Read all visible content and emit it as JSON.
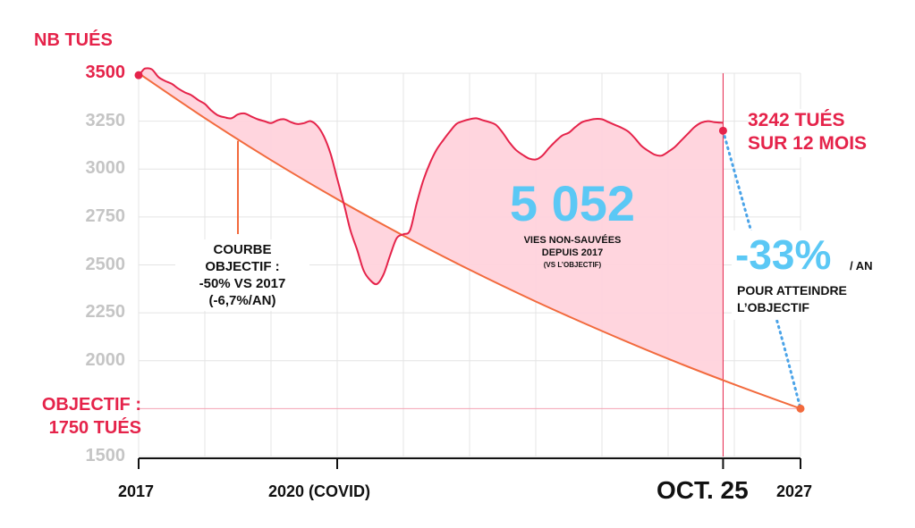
{
  "colors": {
    "red": "#e5234a",
    "fill_pink": "#ffd3dc",
    "objective_orange": "#f26a3d",
    "projection_blue": "#4aa3e8",
    "big_number_blue": "#5bc8f5",
    "tick_grey": "#c5c5c5",
    "grid": "#e4e4e4"
  },
  "labels": {
    "y_axis_title": "NB TUÉS",
    "objective_line1": "OBJECTIF :",
    "objective_line2": "1750 TUÉS",
    "current_line1": "3242 TUÉS",
    "current_line2": "SUR 12 MOIS",
    "curve_note_line1": "COURBE",
    "curve_note_line2": "OBJECTIF :",
    "curve_note_line3": "-50% VS 2017",
    "curve_note_line4": "(-6,7%/AN)",
    "big_number": "5 052",
    "big_number_caption1": "VIES NON-SAUVÉES",
    "big_number_caption2": "DEPUIS 2017",
    "big_number_caption3": "(VS L’OBJECTIF)",
    "rate_value": "-33%",
    "rate_unit": "/ AN",
    "rate_caption1": "POUR ATTEINDRE",
    "rate_caption2": "L’OBJECTIF"
  },
  "chart_data": {
    "type": "area",
    "y_axis_title": "NB TUÉS",
    "xlim": [
      2017.0,
      2027.0
    ],
    "ylim": [
      1500,
      3500
    ],
    "y_ticks": [
      3500,
      3250,
      3000,
      2750,
      2500,
      2250,
      2000,
      1500
    ],
    "y_tick_labels": [
      "3500",
      "3250",
      "3000",
      "2750",
      "2500",
      "2250",
      "2000",
      "1500"
    ],
    "x_ticks": [
      {
        "x": 2017.0,
        "label": "2017"
      },
      {
        "x": 2020.0,
        "label": "2020 (COVID)"
      },
      {
        "x": 2025.83,
        "label": "OCT. 25"
      },
      {
        "x": 2027.0,
        "label": "2027"
      }
    ],
    "grid": true,
    "objective_value": 1750,
    "series": [
      {
        "kind": "actual_12_month_rolling",
        "x": [
          2017.0,
          2017.05,
          2017.1,
          2017.2,
          2017.3,
          2017.4,
          2017.5,
          2017.6,
          2017.7,
          2017.8,
          2017.9,
          2018.0,
          2018.1,
          2018.2,
          2018.3,
          2018.4,
          2018.5,
          2018.6,
          2018.7,
          2018.8,
          2018.9,
          2019.0,
          2019.1,
          2019.2,
          2019.3,
          2019.4,
          2019.5,
          2019.6,
          2019.7,
          2019.8,
          2019.9,
          2020.0,
          2020.1,
          2020.2,
          2020.3,
          2020.4,
          2020.5,
          2020.6,
          2020.7,
          2020.8,
          2020.9,
          2021.0,
          2021.1,
          2021.2,
          2021.3,
          2021.4,
          2021.5,
          2021.6,
          2021.7,
          2021.8,
          2021.9,
          2022.0,
          2022.1,
          2022.2,
          2022.3,
          2022.4,
          2022.5,
          2022.6,
          2022.7,
          2022.8,
          2022.9,
          2023.0,
          2023.1,
          2023.2,
          2023.3,
          2023.4,
          2023.5,
          2023.6,
          2023.7,
          2023.8,
          2023.9,
          2024.0,
          2024.1,
          2024.2,
          2024.3,
          2024.4,
          2024.5,
          2024.6,
          2024.7,
          2024.8,
          2024.9,
          2025.0,
          2025.1,
          2025.2,
          2025.3,
          2025.4,
          2025.5,
          2025.6,
          2025.7,
          2025.8,
          2025.83
        ],
        "y": [
          3490,
          3510,
          3525,
          3520,
          3480,
          3460,
          3445,
          3420,
          3400,
          3385,
          3360,
          3340,
          3305,
          3280,
          3270,
          3265,
          3285,
          3290,
          3275,
          3260,
          3250,
          3240,
          3255,
          3260,
          3245,
          3235,
          3240,
          3250,
          3225,
          3170,
          3080,
          2950,
          2820,
          2680,
          2580,
          2470,
          2420,
          2400,
          2450,
          2550,
          2640,
          2660,
          2680,
          2820,
          2940,
          3030,
          3100,
          3150,
          3195,
          3235,
          3250,
          3260,
          3265,
          3255,
          3245,
          3230,
          3190,
          3140,
          3100,
          3075,
          3055,
          3050,
          3070,
          3110,
          3145,
          3175,
          3190,
          3220,
          3245,
          3255,
          3262,
          3260,
          3245,
          3230,
          3215,
          3195,
          3160,
          3120,
          3095,
          3075,
          3070,
          3090,
          3115,
          3150,
          3185,
          3220,
          3242,
          3250,
          3245,
          3242,
          3242
        ]
      },
      {
        "kind": "objective_curve",
        "x": [
          2017.0,
          2018.0,
          2019.0,
          2020.0,
          2021.0,
          2022.0,
          2023.0,
          2024.0,
          2025.0,
          2026.0,
          2027.0
        ],
        "y": [
          3500,
          3266,
          3047,
          2843,
          2653,
          2475,
          2309,
          2155,
          2010,
          1876,
          1750
        ]
      },
      {
        "kind": "projection",
        "x": [
          2025.83,
          2026.3,
          2026.7,
          2027.0
        ],
        "y": [
          3200,
          2620,
          2140,
          1750
        ]
      }
    ]
  }
}
